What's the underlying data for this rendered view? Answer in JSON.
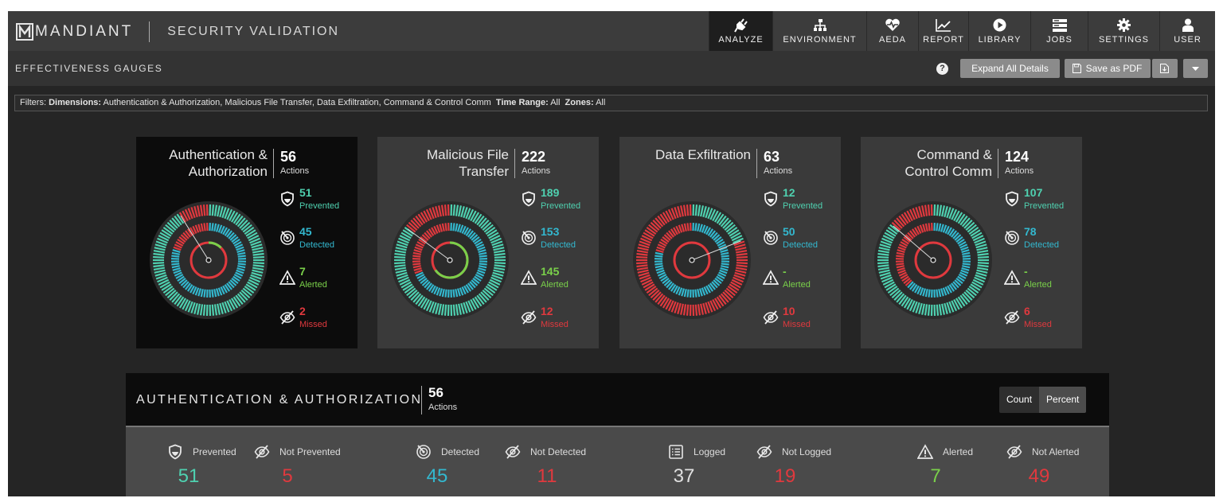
{
  "app": {
    "brand": "MANDIANT",
    "product": "SECURITY VALIDATION"
  },
  "nav": [
    {
      "label": "ANALYZE",
      "icon": "plug-icon",
      "active": true
    },
    {
      "label": "ENVIRONMENT",
      "icon": "hierarchy-icon",
      "active": false
    },
    {
      "label": "AEDA",
      "icon": "heart-pulse-icon",
      "active": false
    },
    {
      "label": "REPORT",
      "icon": "line-chart-icon",
      "active": false
    },
    {
      "label": "LIBRARY",
      "icon": "play-circle-icon",
      "active": false
    },
    {
      "label": "JOBS",
      "icon": "server-stack-icon",
      "active": false
    },
    {
      "label": "SETTINGS",
      "icon": "gear-icon",
      "active": false
    },
    {
      "label": "USER",
      "icon": "user-icon",
      "active": false
    }
  ],
  "subbar": {
    "title": "EFFECTIVENESS GAUGES",
    "help": "?",
    "expand_label": "Expand All Details",
    "pdf_label": "Save as PDF"
  },
  "filters": {
    "prefix": "Filters:",
    "dimensions_key": "Dimensions:",
    "dimensions_value": "Authentication & Authorization, Malicious File Transfer, Data Exfiltration, Command & Control Comm",
    "time_key": "Time Range:",
    "time_value": "All",
    "zones_key": "Zones:",
    "zones_value": "All"
  },
  "colors": {
    "prevented": "#4fd1b0",
    "detected": "#33b8cf",
    "alerted": "#7ad04a",
    "missed": "#e0393e"
  },
  "cards": [
    {
      "title": "Authentication &\nAuthorization",
      "count": "56",
      "actions": "Actions",
      "prevented": "51",
      "prevented_label": "Prevented",
      "detected": "45",
      "detected_label": "Detected",
      "alerted": "7",
      "alerted_label": "Alerted",
      "missed": "2",
      "missed_label": "Missed",
      "selected": true
    },
    {
      "title": "Malicious File\nTransfer",
      "count": "222",
      "actions": "Actions",
      "prevented": "189",
      "prevented_label": "Prevented",
      "detected": "153",
      "detected_label": "Detected",
      "alerted": "145",
      "alerted_label": "Alerted",
      "missed": "12",
      "missed_label": "Missed",
      "selected": false
    },
    {
      "title": "Data Exfiltration",
      "count": "63",
      "actions": "Actions",
      "prevented": "12",
      "prevented_label": "Prevented",
      "detected": "50",
      "detected_label": "Detected",
      "alerted": "-",
      "alerted_label": "Alerted",
      "missed": "10",
      "missed_label": "Missed",
      "selected": false
    },
    {
      "title": "Command &\nControl Comm",
      "count": "124",
      "actions": "Actions",
      "prevented": "107",
      "prevented_label": "Prevented",
      "detected": "78",
      "detected_label": "Detected",
      "alerted": "-",
      "alerted_label": "Alerted",
      "missed": "6",
      "missed_label": "Missed",
      "selected": false
    }
  ],
  "detail": {
    "title": "AUTHENTICATION & AUTHORIZATION",
    "count": "56",
    "actions": "Actions",
    "toggle": [
      "Count",
      "Percent"
    ],
    "metrics": [
      {
        "label": "Prevented",
        "value": "51",
        "icon": "shield-icon"
      },
      {
        "label": "Not Prevented",
        "value": "5",
        "icon": "eye-slash-icon"
      },
      {
        "label": "Detected",
        "value": "45",
        "icon": "radar-icon"
      },
      {
        "label": "Not Detected",
        "value": "11",
        "icon": "eye-slash-icon"
      },
      {
        "label": "Logged",
        "value": "37",
        "icon": "list-icon"
      },
      {
        "label": "Not Logged",
        "value": "19",
        "icon": "eye-slash-icon"
      },
      {
        "label": "Alerted",
        "value": "7",
        "icon": "warning-icon"
      },
      {
        "label": "Not Alerted",
        "value": "49",
        "icon": "eye-slash-icon"
      }
    ]
  }
}
